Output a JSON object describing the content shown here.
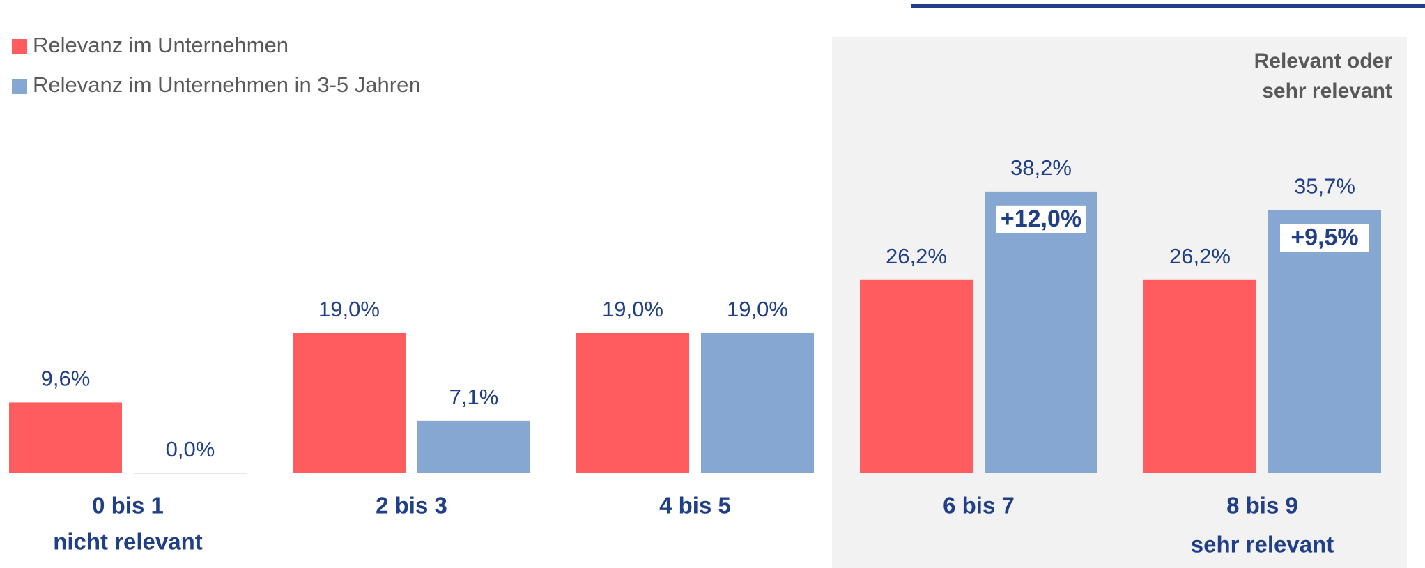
{
  "chart_data": {
    "type": "bar",
    "categories": [
      "0 bis 1",
      "2 bis 3",
      "4 bis 5",
      "6 bis 7",
      "8 bis 9"
    ],
    "category_notes": [
      "nicht relevant",
      null,
      null,
      null,
      "sehr relevant"
    ],
    "series": [
      {
        "name": "Relevanz im Unternehmen",
        "color": "#ff5c5f",
        "values": [
          9.6,
          19.0,
          19.0,
          26.2,
          26.2
        ],
        "value_labels": [
          "9,6%",
          "19,0%",
          "19,0%",
          "26,2%",
          "26,2%"
        ]
      },
      {
        "name": "Relevanz im Unternehmen in 3-5 Jahren",
        "color": "#87a7d3",
        "values": [
          0.0,
          7.1,
          19.0,
          38.2,
          35.7
        ],
        "value_labels": [
          "0,0%",
          "7,1%",
          "19,0%",
          "38,2%",
          "35,7%"
        ],
        "annotations": [
          null,
          null,
          null,
          "+12,0%",
          "+9,5%"
        ]
      }
    ],
    "highlight_label": [
      "Relevant oder",
      "sehr relevant"
    ]
  }
}
